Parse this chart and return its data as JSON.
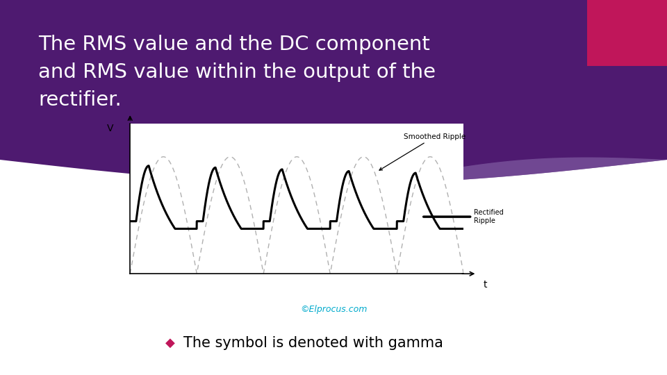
{
  "bg_color": "#ffffff",
  "header_bg_color": "#4e1a70",
  "header_text_color": "#ffffff",
  "header_font_size": 21,
  "header_line1": "The RMS value and the DC component",
  "header_line2": "and RMS value within the output of the",
  "header_line3": "rectifier.",
  "accent_color": "#c0165a",
  "bullet_color": "#c0165a",
  "bullet_text": "The symbol is denoted with gamma",
  "bullet_font_size": 15,
  "watermark_text": "©Elprocus.com",
  "watermark_color": "#00aacc",
  "smoothed_ripple_label": "Smoothed Ripple",
  "rectified_ripple_label": "Rectified\nRipple",
  "axis_label_v": "V",
  "axis_label_t": "t",
  "graph_line_color": "#000000",
  "dashed_line_color": "#b0b0b0",
  "light_purple": "#8866aa"
}
